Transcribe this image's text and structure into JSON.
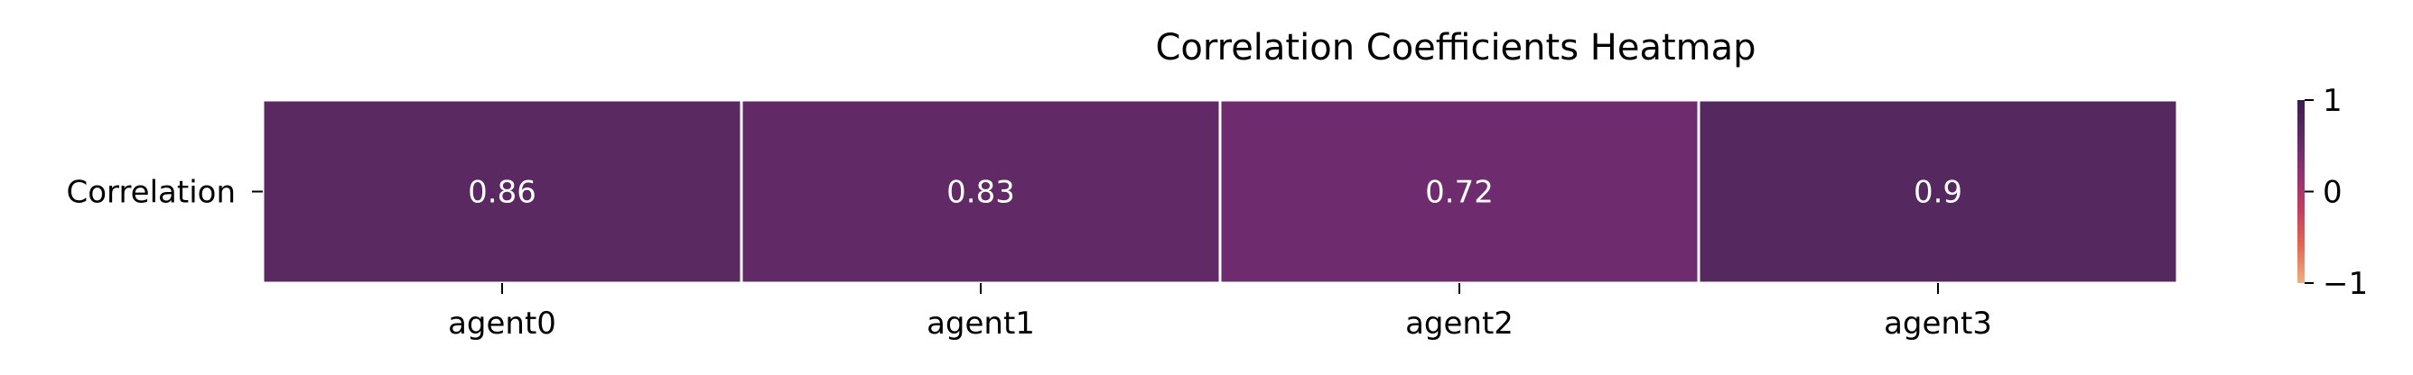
{
  "chart_data": {
    "type": "heatmap",
    "title": "Correlation Coefficients Heatmap",
    "xlabel": "",
    "ylabel": "",
    "x_categories": [
      "agent0",
      "agent1",
      "agent2",
      "agent3"
    ],
    "y_categories": [
      "Correlation"
    ],
    "values": [
      [
        0.86,
        0.83,
        0.72,
        0.9
      ]
    ],
    "value_labels": [
      "0.86",
      "0.83",
      "0.72",
      "0.9"
    ],
    "colorbar": {
      "range": [
        -1,
        1
      ],
      "ticks": [
        1,
        0,
        -1
      ],
      "tick_labels": [
        "1",
        "0",
        "−1"
      ],
      "colormap": "flare",
      "stops": [
        "#edb081",
        "#e26952",
        "#c33d60",
        "#913173",
        "#5d2a63",
        "#3c1c4b"
      ]
    },
    "cell_colors": [
      "#5a2962",
      "#612a67",
      "#6e2b6e",
      "#55285f"
    ],
    "cell_border_color": "#ffffff",
    "grid": false
  }
}
